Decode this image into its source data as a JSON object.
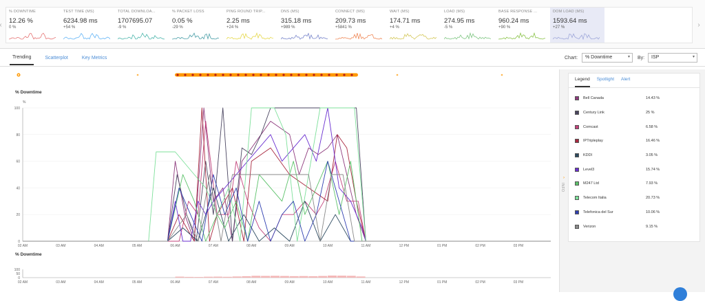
{
  "metrics": [
    {
      "name": "% DOWNTIME",
      "value": "12.26 %",
      "change": "0 %",
      "color": "#e57373"
    },
    {
      "name": "TEST TIME (MS)",
      "value": "6234.98 ms",
      "change": "+54 %",
      "color": "#64b5f6"
    },
    {
      "name": "TOTAL DOWNLOA...",
      "value": "1707695.07",
      "change": "-9 %",
      "color": "#4db6ac"
    },
    {
      "name": "% PACKET LOSS",
      "value": "0.05 %",
      "change": "-29 %",
      "color": "#4a9fa8"
    },
    {
      "name": "PING ROUND TRIP...",
      "value": "2.25 ms",
      "change": "+24 %",
      "color": "#e6d94d"
    },
    {
      "name": "DNS (MS)",
      "value": "315.18 ms",
      "change": "+989 %",
      "color": "#7986cb"
    },
    {
      "name": "CONNECT (MS)",
      "value": "209.73 ms",
      "change": "+5841 %",
      "color": "#ef8a5a"
    },
    {
      "name": "WAIT (MS)",
      "value": "174.71 ms",
      "change": "+4 %",
      "color": "#d4c85a"
    },
    {
      "name": "LOAD (MS)",
      "value": "274.95 ms",
      "change": "-5 %",
      "color": "#81c784"
    },
    {
      "name": "BASE RESPONSE ...",
      "value": "960.24 ms",
      "change": "+90 %",
      "color": "#8bc34a"
    },
    {
      "name": "DOM LOAD (MS)",
      "value": "1593.64 ms",
      "change": "+27 %",
      "color": "#9fa8da"
    }
  ],
  "tabs": [
    "Trending",
    "Scatterplot",
    "Key Metrics"
  ],
  "controls": {
    "chart_label": "Chart:",
    "chart_value": "% Downtime",
    "by_label": "By:",
    "by_value": "ISP"
  },
  "chart_data": {
    "type": "line",
    "title": "% Downtime",
    "ylabel": "%",
    "ylim": [
      0,
      100
    ],
    "yticks": [
      0,
      20,
      40,
      60,
      80,
      100
    ],
    "x_tick_labels": [
      "02 AM",
      "03 AM",
      "04 AM",
      "05 AM",
      "06 AM",
      "07 AM",
      "08 AM",
      "09 AM",
      "10 AM",
      "11 AM",
      "12 PM",
      "01 PM",
      "02 PM",
      "03 PM"
    ],
    "x_range_hours": [
      2.0,
      15.85
    ],
    "series": [
      {
        "name": "Bell Canada",
        "color": "#8e3a7d",
        "x": [
          2,
          5.8,
          6.0,
          6.25,
          6.5,
          6.75,
          7.0,
          7.25,
          7.5,
          7.75,
          8.0,
          8.5,
          9.0,
          9.25,
          9.5,
          9.75,
          10.0,
          10.25,
          10.5,
          10.75,
          11.0,
          15.85
        ],
        "y": [
          0,
          0,
          60,
          20,
          0,
          100,
          30,
          40,
          0,
          60,
          70,
          90,
          80,
          50,
          70,
          65,
          70,
          80,
          50,
          20,
          0,
          0
        ]
      },
      {
        "name": "Century Link",
        "color": "#4a4560",
        "x": [
          2,
          5.8,
          6.05,
          6.3,
          6.55,
          6.8,
          7.0,
          7.25,
          7.5,
          7.75,
          8.0,
          8.25,
          8.5,
          9.0,
          9.5,
          10.0,
          10.25,
          10.5,
          10.75,
          11.0,
          15.85
        ],
        "y": [
          0,
          0,
          50,
          20,
          0,
          60,
          20,
          100,
          0,
          70,
          65,
          80,
          100,
          100,
          100,
          100,
          100,
          100,
          100,
          0,
          0
        ]
      },
      {
        "name": "Comcast",
        "color": "#c2427a",
        "x": [
          2,
          5.8,
          6.1,
          6.35,
          6.6,
          6.8,
          7.1,
          7.4,
          7.6,
          7.9,
          8.2,
          8.5,
          8.8,
          9.1,
          9.4,
          9.7,
          9.9,
          10.2,
          10.5,
          10.8,
          11.0,
          15.85
        ],
        "y": [
          0,
          0,
          0,
          30,
          20,
          90,
          20,
          20,
          60,
          30,
          10,
          0,
          20,
          20,
          30,
          20,
          30,
          60,
          30,
          30,
          0,
          0
        ]
      },
      {
        "name": "IPTripleplay",
        "color": "#a8283f",
        "x": [
          2,
          5.8,
          6.1,
          6.3,
          6.5,
          6.7,
          6.9,
          7.1,
          7.3,
          7.5,
          7.8,
          8.0,
          8.5,
          9.0,
          9.5,
          10.0,
          10.25,
          10.5,
          10.75,
          11.0,
          15.85
        ],
        "y": [
          0,
          0,
          20,
          10,
          0,
          100,
          0,
          20,
          30,
          40,
          0,
          60,
          70,
          50,
          40,
          30,
          80,
          70,
          30,
          0,
          0
        ]
      },
      {
        "name": "KDDI",
        "color": "#2c4a60",
        "x": [
          2,
          5.8,
          6.2,
          6.6,
          7.0,
          7.4,
          7.8,
          8.2,
          8.6,
          9.0,
          9.4,
          9.8,
          10.2,
          10.6,
          11.0,
          15.85
        ],
        "y": [
          0,
          0,
          10,
          0,
          40,
          0,
          20,
          0,
          10,
          0,
          30,
          0,
          20,
          0,
          0,
          0
        ]
      },
      {
        "name": "Level3",
        "color": "#6a2fd0",
        "x": [
          2,
          5.8,
          6.0,
          6.2,
          6.4,
          6.6,
          6.8,
          7.0,
          7.3,
          7.6,
          7.9,
          8.2,
          8.5,
          8.8,
          9.1,
          9.4,
          9.7,
          10.0,
          10.3,
          10.6,
          10.9,
          11.0,
          15.85
        ],
        "y": [
          0,
          0,
          30,
          0,
          0,
          30,
          20,
          30,
          40,
          50,
          60,
          70,
          80,
          60,
          70,
          80,
          60,
          100,
          40,
          30,
          10,
          0,
          0
        ]
      },
      {
        "name": "M247 Ltd",
        "color": "#5cc26a",
        "x": [
          2,
          5.8,
          6.2,
          6.5,
          6.8,
          7.1,
          7.3,
          7.6,
          7.9,
          8.2,
          8.5,
          8.8,
          9.1,
          9.4,
          9.7,
          10.0,
          10.3,
          10.6,
          10.9,
          15.85
        ],
        "y": [
          0,
          0,
          50,
          30,
          0,
          20,
          10,
          30,
          0,
          50,
          40,
          30,
          60,
          20,
          40,
          60,
          20,
          60,
          0,
          0
        ]
      },
      {
        "name": "Telecom Italia",
        "color": "#7de09a",
        "x": [
          2,
          5.3,
          5.5,
          5.8,
          6.0,
          6.5,
          6.8,
          7.1,
          7.4,
          7.7,
          8.0,
          8.3,
          8.6,
          8.9,
          9.2,
          9.5,
          9.8,
          10.1,
          10.4,
          10.7,
          11.0,
          15.85
        ],
        "y": [
          0,
          0,
          67,
          67,
          67,
          50,
          40,
          20,
          40,
          0,
          100,
          100,
          100,
          80,
          0,
          50,
          100,
          100,
          100,
          100,
          0,
          0
        ]
      },
      {
        "name": "Telefonica del Sur",
        "color": "#2f3fb0",
        "x": [
          2,
          5.8,
          6.1,
          6.4,
          6.7,
          7.0,
          7.3,
          7.6,
          7.9,
          8.2,
          8.5,
          8.8,
          9.1,
          9.4,
          9.7,
          10.0,
          10.3,
          10.6,
          10.9,
          15.85
        ],
        "y": [
          0,
          0,
          40,
          20,
          0,
          50,
          20,
          40,
          0,
          30,
          0,
          20,
          30,
          0,
          20,
          60,
          30,
          0,
          0,
          0
        ]
      },
      {
        "name": "Verizon",
        "color": "#8a8a8a",
        "x": [
          2,
          5.8,
          6.3,
          6.6,
          6.9,
          7.2,
          7.5,
          8.0,
          8.5,
          9.0,
          9.5,
          9.8,
          10.1,
          10.4,
          10.7,
          11.0,
          15.85
        ],
        "y": [
          0,
          0,
          20,
          0,
          50,
          0,
          50,
          50,
          50,
          50,
          50,
          0,
          50,
          50,
          0,
          0,
          0
        ]
      }
    ],
    "overview": {
      "title": "% Downtime",
      "yticks": [
        0,
        50,
        100
      ],
      "bar_color": "#f4b7b7",
      "bars_x": [
        6.0,
        6.25,
        6.5,
        6.75,
        7.0,
        7.25,
        7.5,
        7.75,
        8.0,
        8.25,
        8.5,
        8.75,
        9.0,
        9.25,
        9.5,
        9.75,
        10.0,
        10.25,
        10.5,
        10.75
      ],
      "bars_y": [
        12,
        9,
        8,
        11,
        12,
        10,
        14,
        17,
        22,
        21,
        22,
        20,
        18,
        19,
        17,
        20,
        25,
        24,
        22,
        14
      ]
    }
  },
  "legend": {
    "tabs": [
      "Legend",
      "Spotlight",
      "Alert"
    ],
    "items": [
      {
        "name": "Bell Canada",
        "value": "14.43 %",
        "color": "#8e3a7d"
      },
      {
        "name": "Century Link",
        "value": "25 %",
        "color": "#4a4560"
      },
      {
        "name": "Comcast",
        "value": "6.58 %",
        "color": "#c2427a"
      },
      {
        "name": "IPTripleplay",
        "value": "16.46 %",
        "color": "#a8283f"
      },
      {
        "name": "KDDI",
        "value": "3.05 %",
        "color": "#2c4a60"
      },
      {
        "name": "Level3",
        "value": "15.74 %",
        "color": "#6a2fd0"
      },
      {
        "name": "M247 Ltd",
        "value": "7.93 %",
        "color": "#5cc26a"
      },
      {
        "name": "Telecom Italia",
        "value": "20.73 %",
        "color": "#7de09a"
      },
      {
        "name": "Telefonica del Sur",
        "value": "10.06 %",
        "color": "#2f3fb0"
      },
      {
        "name": "Verizon",
        "value": "9.15 %",
        "color": "#8a8a8a"
      }
    ]
  },
  "side_handle_label": "INFO"
}
